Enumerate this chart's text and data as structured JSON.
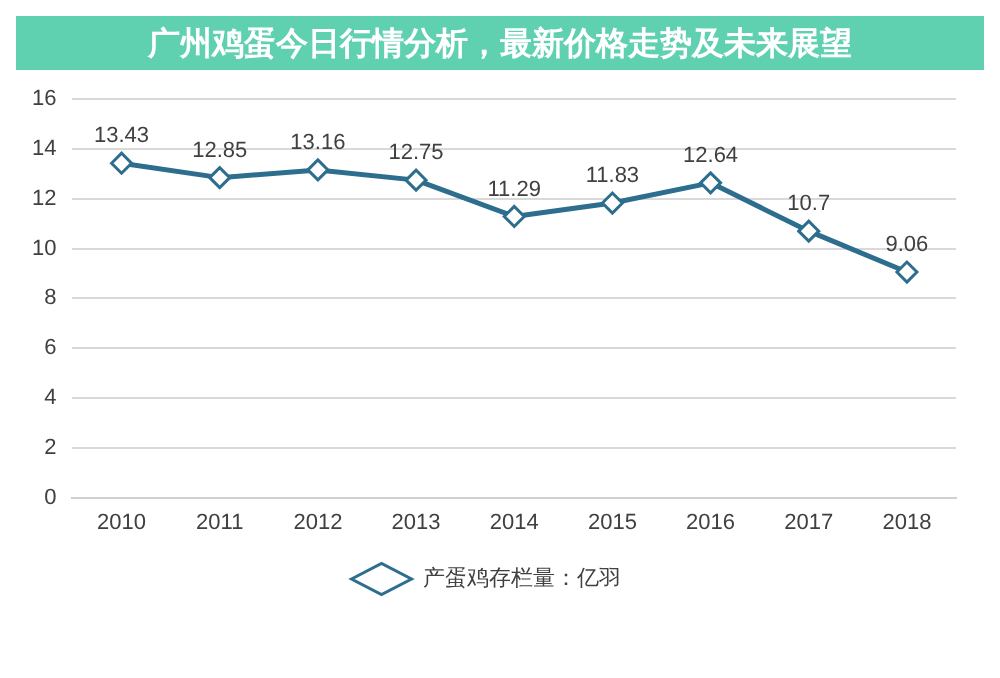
{
  "chart_data": {
    "type": "line",
    "title": "广州鸡蛋今日行情分析，最新价格走势及未来展望",
    "categories": [
      "2010",
      "2011",
      "2012",
      "2013",
      "2014",
      "2015",
      "2016",
      "2017",
      "2018"
    ],
    "series": [
      {
        "name": "产蛋鸡存栏量：亿羽",
        "color": "#2d6e8e",
        "values": [
          13.43,
          12.85,
          13.16,
          12.75,
          11.29,
          11.83,
          12.64,
          10.7,
          9.06
        ]
      }
    ],
    "ylim": [
      0,
      16
    ],
    "yticks": [
      0,
      2,
      4,
      6,
      8,
      10,
      12,
      14,
      16
    ],
    "grid": "y",
    "legend": "bottom",
    "marker": "diamond",
    "line_style": "solid",
    "data_labels": true
  }
}
